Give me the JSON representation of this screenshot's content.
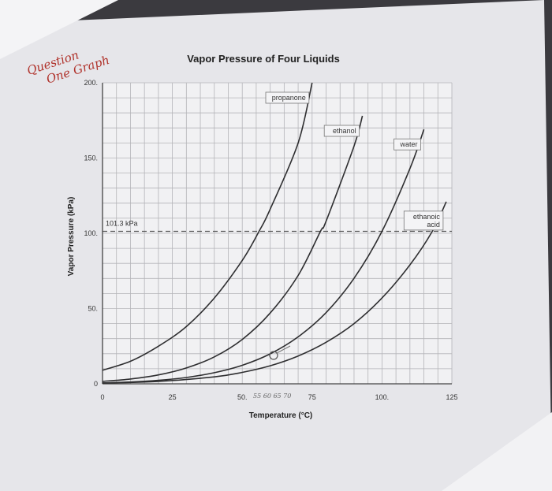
{
  "handwriting": {
    "note_line1": "Question",
    "note_line2": "One Graph",
    "temp_marks": "55 60 65 70"
  },
  "chart_data": {
    "type": "line",
    "title": "Vapor Pressure of Four Liquids",
    "xlabel": "Temperature (°C)",
    "ylabel": "Vapor Pressure (kPa)",
    "xlim": [
      0,
      125
    ],
    "ylim": [
      0,
      200
    ],
    "x_ticks": [
      0,
      25,
      50,
      75,
      100,
      125
    ],
    "x_tick_labels": [
      "0",
      "25",
      "50.",
      "75",
      "100.",
      "125"
    ],
    "y_ticks": [
      0,
      50,
      100,
      150,
      200
    ],
    "y_tick_labels": [
      "0",
      "50.",
      "100.",
      "150.",
      "200."
    ],
    "grid": true,
    "reference_line": {
      "y": 101.3,
      "label": "101.3 kPa",
      "style": "dashed"
    },
    "series": [
      {
        "name": "propanone",
        "x": [
          0,
          10,
          20,
          30,
          40,
          50,
          56,
          60,
          70,
          75
        ],
        "values": [
          9,
          15,
          25,
          38,
          57,
          82,
          101.3,
          116,
          160,
          200
        ]
      },
      {
        "name": "ethanol",
        "x": [
          0,
          10,
          20,
          30,
          40,
          50,
          60,
          70,
          78,
          80,
          90,
          93
        ],
        "values": [
          1.6,
          3.2,
          5.9,
          10.5,
          17.9,
          29.5,
          47,
          72,
          101.3,
          108,
          158,
          178
        ]
      },
      {
        "name": "water",
        "x": [
          0,
          10,
          20,
          30,
          40,
          50,
          60,
          70,
          80,
          90,
          100,
          110,
          115
        ],
        "values": [
          0.6,
          1.2,
          2.3,
          4.2,
          7.4,
          12.3,
          19.9,
          31.2,
          47.3,
          70.1,
          101.3,
          143,
          169
        ]
      },
      {
        "name": "ethanoic acid",
        "x": [
          0,
          20,
          40,
          50,
          60,
          70,
          80,
          90,
          100,
          110,
          118,
          123
        ],
        "values": [
          0.5,
          1.6,
          4.6,
          7.6,
          12,
          18.5,
          27.6,
          40,
          57,
          79,
          101.3,
          121
        ]
      }
    ],
    "series_labels": [
      {
        "series": 0,
        "text": "propanone"
      },
      {
        "series": 1,
        "text": "ethanol"
      },
      {
        "series": 2,
        "text": "water"
      },
      {
        "series": 3,
        "text": "ethanoic acid",
        "lines": [
          "ethanoic",
          "acid"
        ]
      }
    ]
  }
}
